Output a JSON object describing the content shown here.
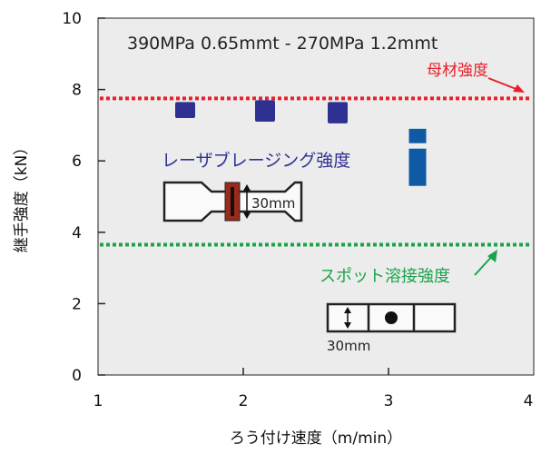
{
  "chart_data": {
    "type": "scatter",
    "title": "390MPa 0.65mmt - 270MPa 1.2mmt",
    "xlabel": "ろう付け速度（m/min）",
    "ylabel": "継手強度（kN）",
    "xlim": [
      1,
      4
    ],
    "ylim": [
      0,
      10
    ],
    "xticks": [
      "1",
      "2",
      "3",
      "4"
    ],
    "yticks": [
      "0",
      "2",
      "4",
      "6",
      "8",
      "10"
    ],
    "grid": false,
    "series": [
      {
        "name": "レーザブレージング強度",
        "color": "#2e3192",
        "points": [
          {
            "x": 1.6,
            "y_low": 7.2,
            "y_high": 7.65
          },
          {
            "x": 2.15,
            "y_low": 7.1,
            "y_high": 7.7
          },
          {
            "x": 2.65,
            "y_low": 7.05,
            "y_high": 7.65
          }
        ]
      },
      {
        "name": "",
        "color": "#0f5aa4",
        "points": [
          {
            "x": 3.2,
            "y_low": 5.3,
            "y_high": 6.9
          }
        ]
      }
    ],
    "reference_lines": [
      {
        "label": "母材強度",
        "y": 7.75,
        "color": "#e8202a"
      },
      {
        "label": "スポット溶接強度",
        "y": 3.65,
        "color": "#1aa34a"
      }
    ],
    "annotations": [
      {
        "text": "30mm",
        "context": "laser brazing specimen"
      },
      {
        "text": "30mm",
        "context": "spot weld specimen"
      }
    ]
  }
}
